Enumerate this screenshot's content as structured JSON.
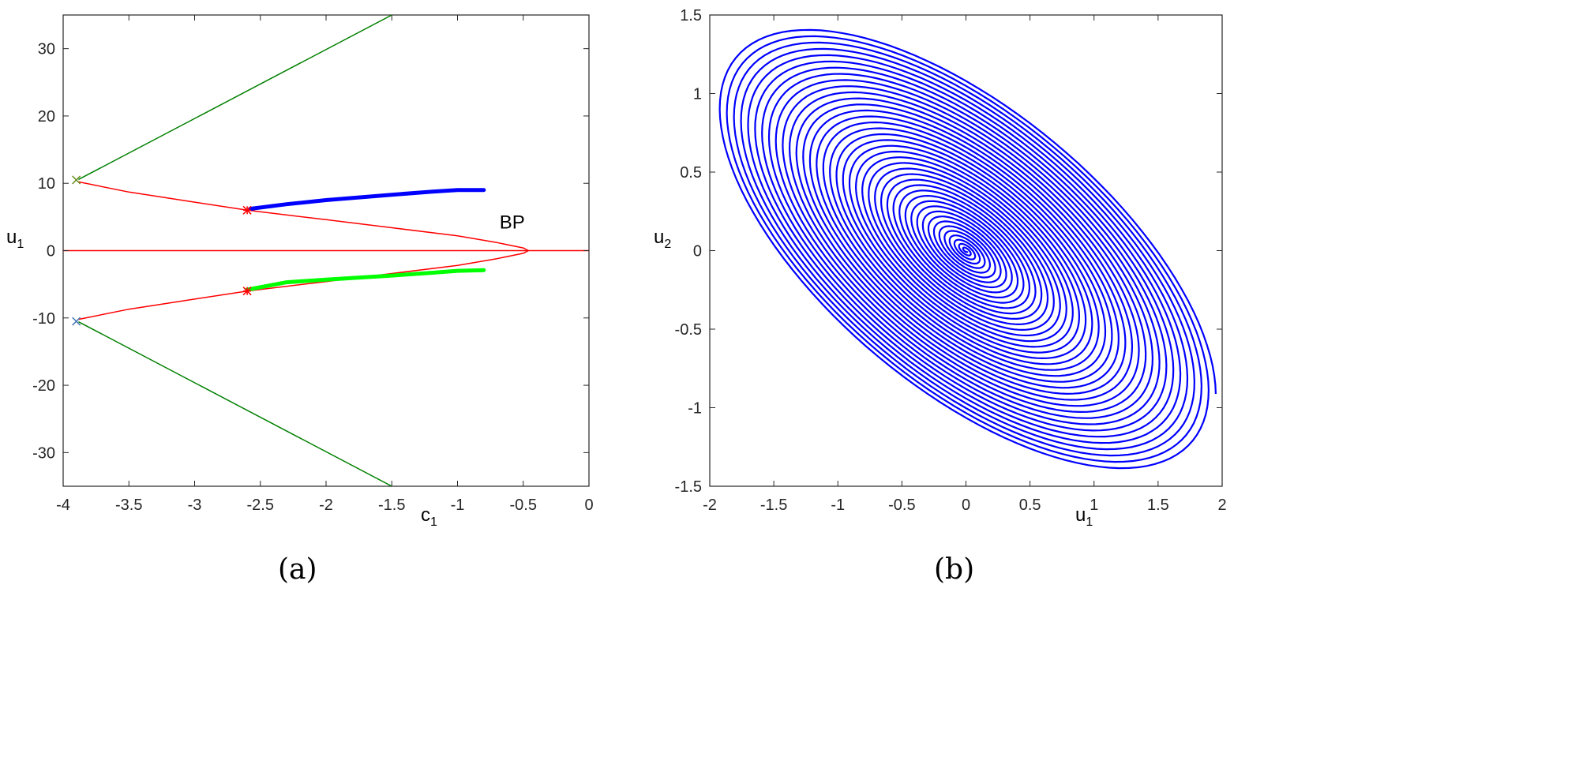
{
  "chart_data": [
    {
      "type": "line",
      "caption": "(a)",
      "xlabel": "c",
      "xlabel_sub": "1",
      "ylabel": "u",
      "ylabel_sub": "1",
      "xlim": [
        -4,
        0
      ],
      "ylim": [
        -35,
        35
      ],
      "xticks": [
        -4,
        -3.5,
        -3,
        -2.5,
        -2,
        -1.5,
        -1,
        -0.5,
        0
      ],
      "yticks": [
        -30,
        -20,
        -10,
        0,
        10,
        20,
        30
      ],
      "grid": false,
      "annotations": [
        {
          "text": "BP",
          "x": -0.5,
          "y": 3.3
        }
      ],
      "series": [
        {
          "color": "#ff0000",
          "width": "thin",
          "points": [
            [
              -4,
              0
            ],
            [
              0,
              0
            ]
          ]
        },
        {
          "color": "#ff0000",
          "width": "thin",
          "points": [
            [
              -3.88,
              10.2
            ],
            [
              -3.5,
              8.7
            ],
            [
              -3,
              7.2
            ],
            [
              -2.6,
              6
            ],
            [
              -2,
              4.6
            ],
            [
              -1.5,
              3.4
            ],
            [
              -1,
              2.2
            ],
            [
              -0.7,
              1.2
            ],
            [
              -0.5,
              0.4
            ],
            [
              -0.46,
              0
            ],
            [
              -0.5,
              -0.4
            ],
            [
              -0.7,
              -1.2
            ],
            [
              -1,
              -2.2
            ],
            [
              -1.5,
              -3.4
            ],
            [
              -2,
              -4.6
            ],
            [
              -2.6,
              -6
            ],
            [
              -3,
              -7.2
            ],
            [
              -3.5,
              -8.7
            ],
            [
              -3.88,
              -10.2
            ]
          ]
        },
        {
          "color": "#008000",
          "width": "thin",
          "points": [
            [
              -3.88,
              10.6
            ],
            [
              -1.5,
              35
            ]
          ]
        },
        {
          "color": "#008000",
          "width": "thin",
          "points": [
            [
              -3.88,
              -10.6
            ],
            [
              -1.5,
              -35
            ]
          ]
        },
        {
          "color": "#0000ff",
          "width": "thick",
          "points": [
            [
              -2.58,
              6.2
            ],
            [
              -2.3,
              6.9
            ],
            [
              -2,
              7.5
            ],
            [
              -1.5,
              8.3
            ],
            [
              -1.2,
              8.75
            ],
            [
              -1,
              9.0
            ],
            [
              -0.8,
              9.0
            ]
          ]
        },
        {
          "color": "#00ff00",
          "width": "thick",
          "points": [
            [
              -2.6,
              -5.8
            ],
            [
              -2.3,
              -4.7
            ],
            [
              -2,
              -4.3
            ],
            [
              -1.5,
              -3.7
            ],
            [
              -1.2,
              -3.3
            ],
            [
              -1,
              -3.0
            ],
            [
              -0.8,
              -2.9
            ]
          ]
        }
      ],
      "markers": [
        {
          "symbol": "*",
          "color": "#ff0000",
          "x": -2.6,
          "y": 6
        },
        {
          "symbol": "*",
          "color": "#ff0000",
          "x": -2.6,
          "y": -6
        },
        {
          "symbol": "x",
          "color": "#6b8e23",
          "x": -3.9,
          "y": 10.5
        },
        {
          "symbol": "x",
          "color": "#4a7ab5",
          "x": -3.9,
          "y": -10.5
        }
      ]
    },
    {
      "type": "line",
      "caption": "(b)",
      "xlabel": "u",
      "xlabel_sub": "1",
      "ylabel": "u",
      "ylabel_sub": "2",
      "xlim": [
        -2,
        2
      ],
      "ylim": [
        -1.5,
        1.5
      ],
      "xticks": [
        -2,
        -1.5,
        -1,
        -0.5,
        0,
        0.5,
        1,
        1.5,
        2
      ],
      "yticks": [
        -1.5,
        -1,
        -0.5,
        0,
        0.5,
        1,
        1.5
      ],
      "grid": false,
      "series": [
        {
          "color": "#0000ff",
          "shape": "spiral",
          "u1_amplitude": 1.95,
          "u2_amplitude": 1.42,
          "phase_deg": 130,
          "turns": 40
        }
      ]
    }
  ]
}
